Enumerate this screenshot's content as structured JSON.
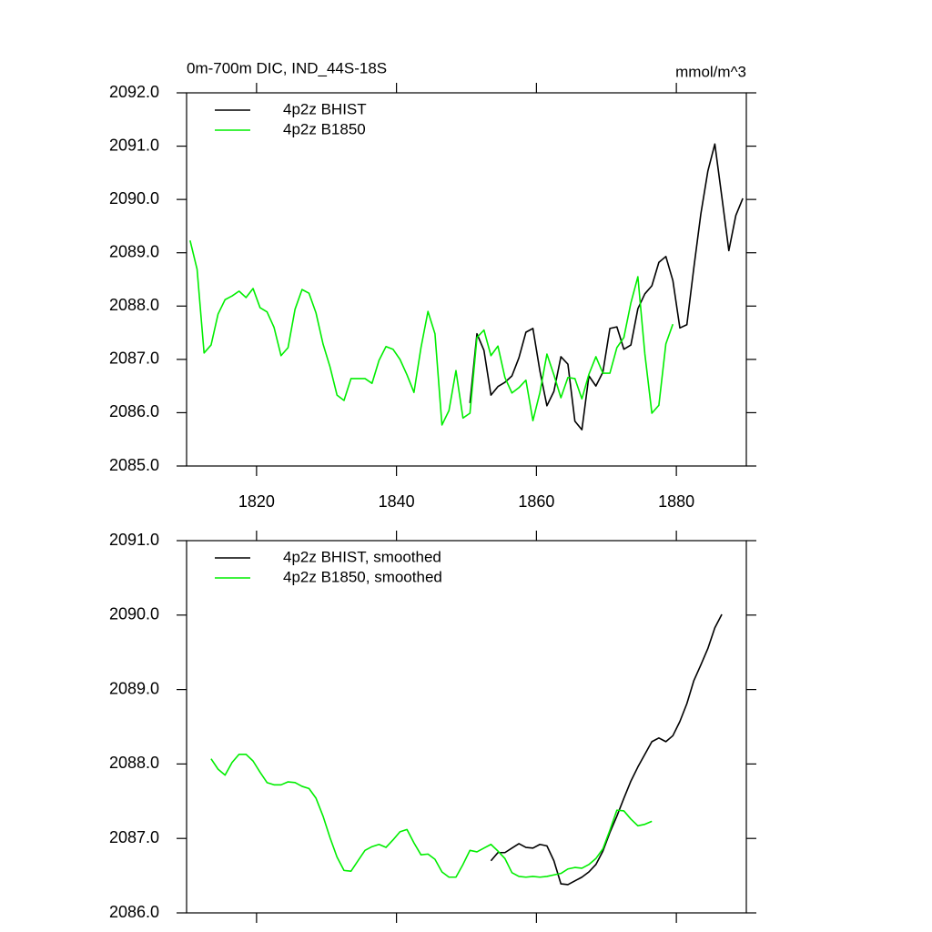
{
  "chart_data": [
    {
      "type": "line",
      "title": "0m-700m DIC, IND_44S-18S",
      "units": "mmol/m^3",
      "xlim": [
        1810,
        1890
      ],
      "xticks": [
        1820,
        1840,
        1860,
        1880
      ],
      "ylim": [
        2085,
        2092
      ],
      "yticks": [
        {
          "value": 2085,
          "label": "2085.0"
        },
        {
          "value": 2086,
          "label": "2086.0"
        },
        {
          "value": 2087,
          "label": "2087.0"
        },
        {
          "value": 2088,
          "label": "2088.0"
        },
        {
          "value": 2089,
          "label": "2089.0"
        },
        {
          "value": 2090,
          "label": "2090.0"
        },
        {
          "value": 2091,
          "label": "2091.0"
        },
        {
          "value": 2092,
          "label": "2092.0"
        }
      ],
      "series": [
        {
          "name": "4p2z BHIST",
          "color": "#000000",
          "x": [
            1850.5,
            1851.5,
            1852.5,
            1853.5,
            1854.5,
            1855.5,
            1856.5,
            1857.5,
            1858.5,
            1859.5,
            1860.5,
            1861.5,
            1862.5,
            1863.5,
            1864.5,
            1865.5,
            1866.5,
            1867.5,
            1868.5,
            1869.5,
            1870.5,
            1871.5,
            1872.5,
            1873.5,
            1874.5,
            1875.5,
            1876.5,
            1877.5,
            1878.5,
            1879.5,
            1880.5,
            1881.5,
            1882.5,
            1883.5,
            1884.5,
            1885.5,
            1886.5,
            1887.5,
            1888.5,
            1889.5
          ],
          "values": [
            2086.18,
            2087.48,
            2087.17,
            2086.33,
            2086.49,
            2086.57,
            2086.69,
            2087.03,
            2087.51,
            2087.58,
            2086.78,
            2086.13,
            2086.4,
            2087.05,
            2086.91,
            2085.84,
            2085.68,
            2086.69,
            2086.5,
            2086.76,
            2087.58,
            2087.61,
            2087.19,
            2087.27,
            2087.95,
            2088.23,
            2088.38,
            2088.82,
            2088.93,
            2088.48,
            2087.59,
            2087.65,
            2088.72,
            2089.73,
            2090.53,
            2091.04,
            2090.05,
            2089.04,
            2089.7,
            2090.02
          ]
        },
        {
          "name": "4p2z B1850",
          "color": "#00ee00",
          "x": [
            1810.5,
            1811.5,
            1812.5,
            1813.5,
            1814.5,
            1815.5,
            1816.5,
            1817.5,
            1818.5,
            1819.5,
            1820.5,
            1821.5,
            1822.5,
            1823.5,
            1824.5,
            1825.5,
            1826.5,
            1827.5,
            1828.5,
            1829.5,
            1830.5,
            1831.5,
            1832.5,
            1833.5,
            1834.5,
            1835.5,
            1836.5,
            1837.5,
            1838.5,
            1839.5,
            1840.5,
            1841.5,
            1842.5,
            1843.5,
            1844.5,
            1845.5,
            1846.5,
            1847.5,
            1848.5,
            1849.5,
            1850.5,
            1851.5,
            1852.5,
            1853.5,
            1854.5,
            1855.5,
            1856.5,
            1857.5,
            1858.5,
            1859.5,
            1860.5,
            1861.5,
            1862.5,
            1863.5,
            1864.5,
            1865.5,
            1866.5,
            1867.5,
            1868.5,
            1869.5,
            1870.5,
            1871.5,
            1872.5,
            1873.5,
            1874.5,
            1875.5,
            1876.5,
            1877.5,
            1878.5,
            1879.5
          ],
          "values": [
            2089.23,
            2088.69,
            2087.12,
            2087.27,
            2087.85,
            2088.12,
            2088.19,
            2088.28,
            2088.16,
            2088.33,
            2087.97,
            2087.89,
            2087.6,
            2087.07,
            2087.22,
            2087.94,
            2088.31,
            2088.24,
            2087.87,
            2087.29,
            2086.86,
            2086.33,
            2086.23,
            2086.64,
            2086.64,
            2086.64,
            2086.55,
            2086.98,
            2087.24,
            2087.19,
            2087.0,
            2086.71,
            2086.38,
            2087.22,
            2087.9,
            2087.48,
            2085.77,
            2086.04,
            2086.79,
            2085.9,
            2085.99,
            2087.41,
            2087.55,
            2087.07,
            2087.25,
            2086.66,
            2086.37,
            2086.47,
            2086.61,
            2085.85,
            2086.38,
            2087.1,
            2086.71,
            2086.28,
            2086.66,
            2086.64,
            2086.26,
            2086.72,
            2087.05,
            2086.74,
            2086.74,
            2087.22,
            2087.41,
            2088.06,
            2088.55,
            2087.1,
            2085.99,
            2086.14,
            2087.29,
            2087.66
          ]
        }
      ]
    },
    {
      "type": "line",
      "xlim": [
        1810,
        1890
      ],
      "xticks": [
        1820,
        1840,
        1860,
        1880
      ],
      "ylim": [
        2086,
        2091
      ],
      "yticks": [
        {
          "value": 2086,
          "label": "2086.0"
        },
        {
          "value": 2087,
          "label": "2087.0"
        },
        {
          "value": 2088,
          "label": "2088.0"
        },
        {
          "value": 2089,
          "label": "2089.0"
        },
        {
          "value": 2090,
          "label": "2090.0"
        },
        {
          "value": 2091,
          "label": "2091.0"
        }
      ],
      "series": [
        {
          "name": "4p2z BHIST, smoothed",
          "color": "#000000",
          "x": [
            1853.5,
            1854.5,
            1855.5,
            1856.5,
            1857.5,
            1858.5,
            1859.5,
            1860.5,
            1861.5,
            1862.5,
            1863.5,
            1864.5,
            1865.5,
            1866.5,
            1867.5,
            1868.5,
            1869.5,
            1870.5,
            1871.5,
            1872.5,
            1873.5,
            1874.5,
            1875.5,
            1876.5,
            1877.5,
            1878.5,
            1879.5,
            1880.5,
            1881.5,
            1882.5,
            1883.5,
            1884.5,
            1885.5,
            1886.5
          ],
          "values": [
            2086.7,
            2086.81,
            2086.81,
            2086.87,
            2086.93,
            2086.88,
            2086.87,
            2086.92,
            2086.9,
            2086.7,
            2086.39,
            2086.38,
            2086.43,
            2086.48,
            2086.55,
            2086.65,
            2086.83,
            2087.08,
            2087.3,
            2087.54,
            2087.77,
            2087.96,
            2088.13,
            2088.3,
            2088.35,
            2088.3,
            2088.38,
            2088.57,
            2088.81,
            2089.12,
            2089.33,
            2089.55,
            2089.83,
            2090.01
          ]
        },
        {
          "name": "4p2z B1850, smoothed",
          "color": "#00ee00",
          "x": [
            1813.5,
            1814.5,
            1815.5,
            1816.5,
            1817.5,
            1818.5,
            1819.5,
            1820.5,
            1821.5,
            1822.5,
            1823.5,
            1824.5,
            1825.5,
            1826.5,
            1827.5,
            1828.5,
            1829.5,
            1830.5,
            1831.5,
            1832.5,
            1833.5,
            1834.5,
            1835.5,
            1836.5,
            1837.5,
            1838.5,
            1839.5,
            1840.5,
            1841.5,
            1842.5,
            1843.5,
            1844.5,
            1845.5,
            1846.5,
            1847.5,
            1848.5,
            1849.5,
            1850.5,
            1851.5,
            1852.5,
            1853.5,
            1854.5,
            1855.5,
            1856.5,
            1857.5,
            1858.5,
            1859.5,
            1860.5,
            1861.5,
            1862.5,
            1863.5,
            1864.5,
            1865.5,
            1866.5,
            1867.5,
            1868.5,
            1869.5,
            1870.5,
            1871.5,
            1872.5,
            1873.5,
            1874.5,
            1875.5,
            1876.5
          ],
          "values": [
            2088.07,
            2087.93,
            2087.85,
            2088.02,
            2088.13,
            2088.13,
            2088.04,
            2087.89,
            2087.75,
            2087.72,
            2087.72,
            2087.76,
            2087.75,
            2087.7,
            2087.67,
            2087.54,
            2087.3,
            2087.01,
            2086.75,
            2086.57,
            2086.56,
            2086.7,
            2086.84,
            2086.89,
            2086.92,
            2086.88,
            2086.98,
            2087.09,
            2087.12,
            2086.94,
            2086.78,
            2086.79,
            2086.72,
            2086.55,
            2086.48,
            2086.48,
            2086.65,
            2086.84,
            2086.82,
            2086.87,
            2086.92,
            2086.83,
            2086.73,
            2086.54,
            2086.49,
            2086.48,
            2086.49,
            2086.48,
            2086.49,
            2086.51,
            2086.53,
            2086.59,
            2086.61,
            2086.6,
            2086.65,
            2086.73,
            2086.86,
            2087.11,
            2087.38,
            2087.37,
            2087.26,
            2087.17,
            2087.19,
            2087.23
          ]
        }
      ]
    }
  ]
}
